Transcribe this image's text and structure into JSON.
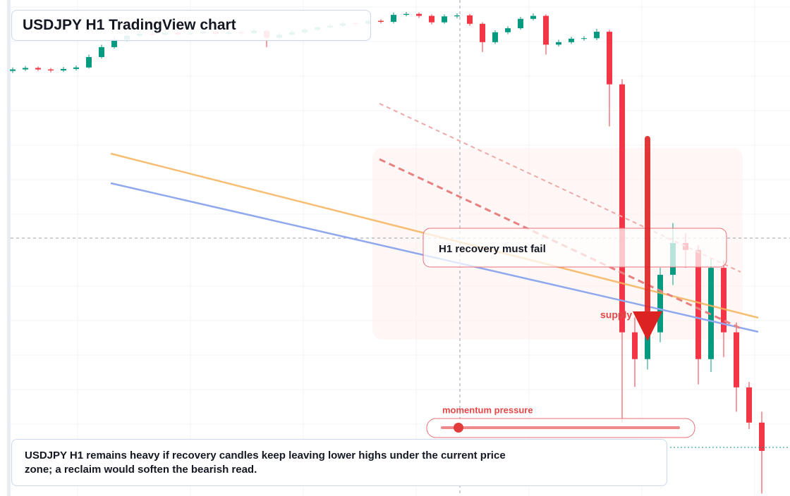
{
  "chart_data": {
    "type": "candlestick",
    "title": "USDJPY H1 TradingView chart",
    "open": [
      85.7,
      86,
      86.3,
      86,
      85.8,
      86.1,
      86.4,
      88.5,
      90.5,
      92,
      92.8,
      93.2,
      93,
      93.4,
      93.1,
      93.3,
      93.6,
      93.2,
      93.5,
      93.3,
      93.8,
      92.4,
      93,
      93.5,
      94,
      94.5,
      94.8,
      95.3,
      95.2,
      95.8,
      95.6,
      97,
      97.2,
      96.8,
      95.5,
      96.7,
      96.9,
      95.2,
      91.5,
      93.5,
      94.3,
      96.2,
      96.8,
      91,
      91.5,
      92.2,
      92.3,
      93.6,
      83,
      33,
      27.6,
      33,
      44.6,
      51,
      49.6,
      27.6,
      46,
      33,
      21.9,
      14.8
    ],
    "high": [
      86.4,
      86.7,
      86.6,
      86.3,
      86.5,
      86.8,
      89,
      91,
      92.5,
      93.3,
      93.7,
      93.6,
      93.9,
      93.8,
      93.7,
      94,
      94,
      93.9,
      93.8,
      94.2,
      94,
      93.4,
      93.9,
      94.4,
      94.9,
      95.2,
      95.7,
      95.6,
      96.2,
      96.1,
      97.5,
      97.6,
      97.5,
      97.1,
      97.1,
      97.3,
      97.2,
      95.5,
      93.9,
      94.7,
      96.6,
      97.3,
      97.1,
      92,
      92.6,
      92.7,
      94.2,
      94,
      84,
      36,
      35,
      46,
      55,
      53,
      50.5,
      48,
      47.5,
      35,
      23,
      17
    ],
    "low": [
      85.3,
      85.7,
      85.7,
      85.4,
      85.5,
      85.8,
      86.2,
      88.2,
      90.2,
      91.7,
      92.5,
      92.7,
      92.8,
      92.8,
      92.9,
      93,
      92.9,
      93,
      93,
      93,
      90.5,
      92.1,
      92.7,
      93.2,
      93.7,
      94.2,
      94.5,
      94.9,
      94.9,
      95.3,
      95.3,
      96.7,
      96.4,
      95.1,
      95.2,
      96.3,
      94.8,
      89.5,
      91.1,
      93.1,
      94,
      95.9,
      89,
      90.6,
      91.1,
      91.8,
      91.9,
      74.5,
      14.8,
      22,
      25.5,
      31,
      42.5,
      46,
      22.5,
      25,
      28,
      17,
      13.5,
      0.5
    ],
    "close": [
      86,
      86.3,
      86,
      85.8,
      86.1,
      86.4,
      88.5,
      90.5,
      92,
      92.8,
      93.2,
      93,
      93.4,
      93.1,
      93.3,
      93.6,
      93.2,
      93.5,
      93.3,
      93.8,
      92.4,
      93,
      93.5,
      94,
      94.5,
      94.8,
      95.3,
      95.2,
      95.8,
      95.6,
      97,
      97.2,
      96.8,
      95.5,
      96.7,
      96.9,
      95.2,
      91.5,
      93.5,
      94.3,
      96.2,
      96.8,
      91,
      91.5,
      92.2,
      92.3,
      93.6,
      83,
      33,
      27.6,
      33,
      44.6,
      51,
      49.6,
      27.6,
      46,
      33,
      21.9,
      14.8,
      9.1
    ],
    "ylim": [
      0,
      100
    ],
    "up_color": "#089981",
    "down_color": "#f23645"
  },
  "annotations": {
    "zone_label": "H1 recovery must fail",
    "supply": "supply",
    "momentum": "momentum pressure",
    "note": "USDJPY H1 remains heavy if recovery candles keep leaving lower highs under the current price zone; a reclaim would soften the bearish read."
  }
}
